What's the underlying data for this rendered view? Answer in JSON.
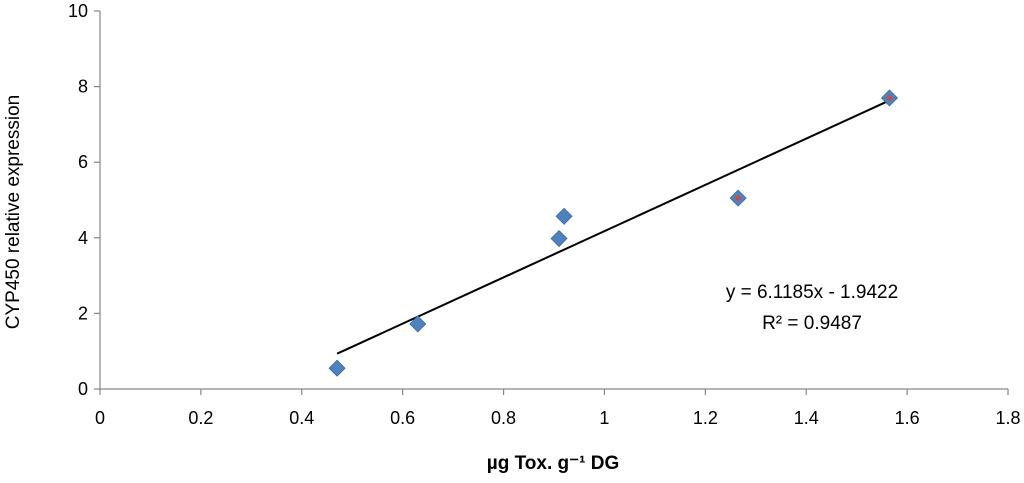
{
  "chart_data": {
    "type": "scatter",
    "title": "",
    "xlabel": "µg Tox. g⁻¹ DG",
    "ylabel": "CYP450 relative expression",
    "xlim": [
      0,
      1.8
    ],
    "ylim": [
      0,
      10
    ],
    "x_ticks": [
      "0",
      "0.2",
      "0.4",
      "0.6",
      "0.8",
      "1",
      "1.2",
      "1.4",
      "1.6",
      "1.8"
    ],
    "y_ticks": [
      "0",
      "2",
      "4",
      "6",
      "8",
      "10"
    ],
    "grid": false,
    "points": [
      {
        "x": 0.47,
        "y": 0.55,
        "color": "#4f81bd",
        "inner": null
      },
      {
        "x": 0.63,
        "y": 1.72,
        "color": "#4f81bd",
        "inner": null
      },
      {
        "x": 0.91,
        "y": 3.98,
        "color": "#4f81bd",
        "inner": null
      },
      {
        "x": 0.92,
        "y": 4.57,
        "color": "#4f81bd",
        "inner": null
      },
      {
        "x": 1.265,
        "y": 5.05,
        "color": "#4f81bd",
        "inner": "#c0504d"
      },
      {
        "x": 1.565,
        "y": 7.7,
        "color": "#4f81bd",
        "inner": "#c0504d"
      }
    ],
    "trendline": {
      "x_start": 0.47,
      "x_end": 1.565,
      "slope": 6.1185,
      "intercept": -1.9422,
      "color": "#000000"
    },
    "annotations": {
      "equation": "y = 6.1185x - 1.9422",
      "r_squared": "R² = 0.9487"
    }
  }
}
